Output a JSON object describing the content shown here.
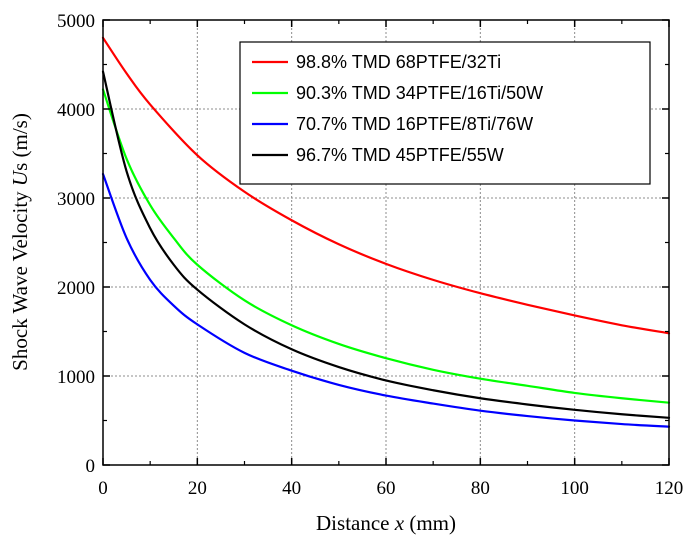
{
  "chart_data": {
    "type": "line",
    "title": "",
    "xlabel": {
      "prefix": "Distance ",
      "symbol": "x",
      "suffix": " (mm)"
    },
    "ylabel": {
      "prefix": "Shock Wave Velocity ",
      "symbol": "U",
      "symbol_sub": "s",
      "suffix": " (m/s)"
    },
    "xlim": [
      0,
      120
    ],
    "ylim": [
      0,
      5000
    ],
    "xticks": [
      0,
      20,
      40,
      60,
      80,
      100,
      120
    ],
    "yticks": [
      0,
      1000,
      2000,
      3000,
      4000,
      5000
    ],
    "grid": true,
    "legend_position": "top-right",
    "series": [
      {
        "name": "98.8% TMD 68PTFE/32Ti",
        "color": "#ff0000",
        "x": [
          0,
          5,
          10,
          20,
          30,
          40,
          50,
          60,
          70,
          80,
          90,
          100,
          110,
          120
        ],
        "y": [
          4800,
          4400,
          4050,
          3480,
          3070,
          2750,
          2480,
          2260,
          2080,
          1930,
          1800,
          1680,
          1570,
          1480
        ]
      },
      {
        "name": "90.3% TMD 34PTFE/16Ti/50W",
        "color": "#00ff00",
        "x": [
          0,
          5,
          10,
          15,
          20,
          30,
          40,
          50,
          60,
          70,
          80,
          90,
          100,
          110,
          120
        ],
        "y": [
          4220,
          3440,
          2920,
          2550,
          2250,
          1850,
          1570,
          1360,
          1200,
          1070,
          970,
          890,
          810,
          750,
          700
        ]
      },
      {
        "name": "70.7% TMD 16PTFE/8Ti/76W",
        "color": "#0000ff",
        "x": [
          0,
          5,
          10,
          15,
          20,
          30,
          40,
          50,
          60,
          70,
          80,
          90,
          100,
          110,
          120
        ],
        "y": [
          3270,
          2550,
          2080,
          1790,
          1580,
          1260,
          1060,
          900,
          780,
          690,
          610,
          550,
          500,
          460,
          430
        ]
      },
      {
        "name": "96.7% TMD 45PTFE/55W",
        "color": "#000000",
        "x": [
          0,
          5,
          10,
          15,
          20,
          30,
          40,
          50,
          60,
          70,
          80,
          90,
          100,
          110,
          120
        ],
        "y": [
          4420,
          3300,
          2660,
          2250,
          1970,
          1580,
          1300,
          1100,
          950,
          840,
          750,
          680,
          620,
          570,
          530
        ]
      }
    ]
  }
}
